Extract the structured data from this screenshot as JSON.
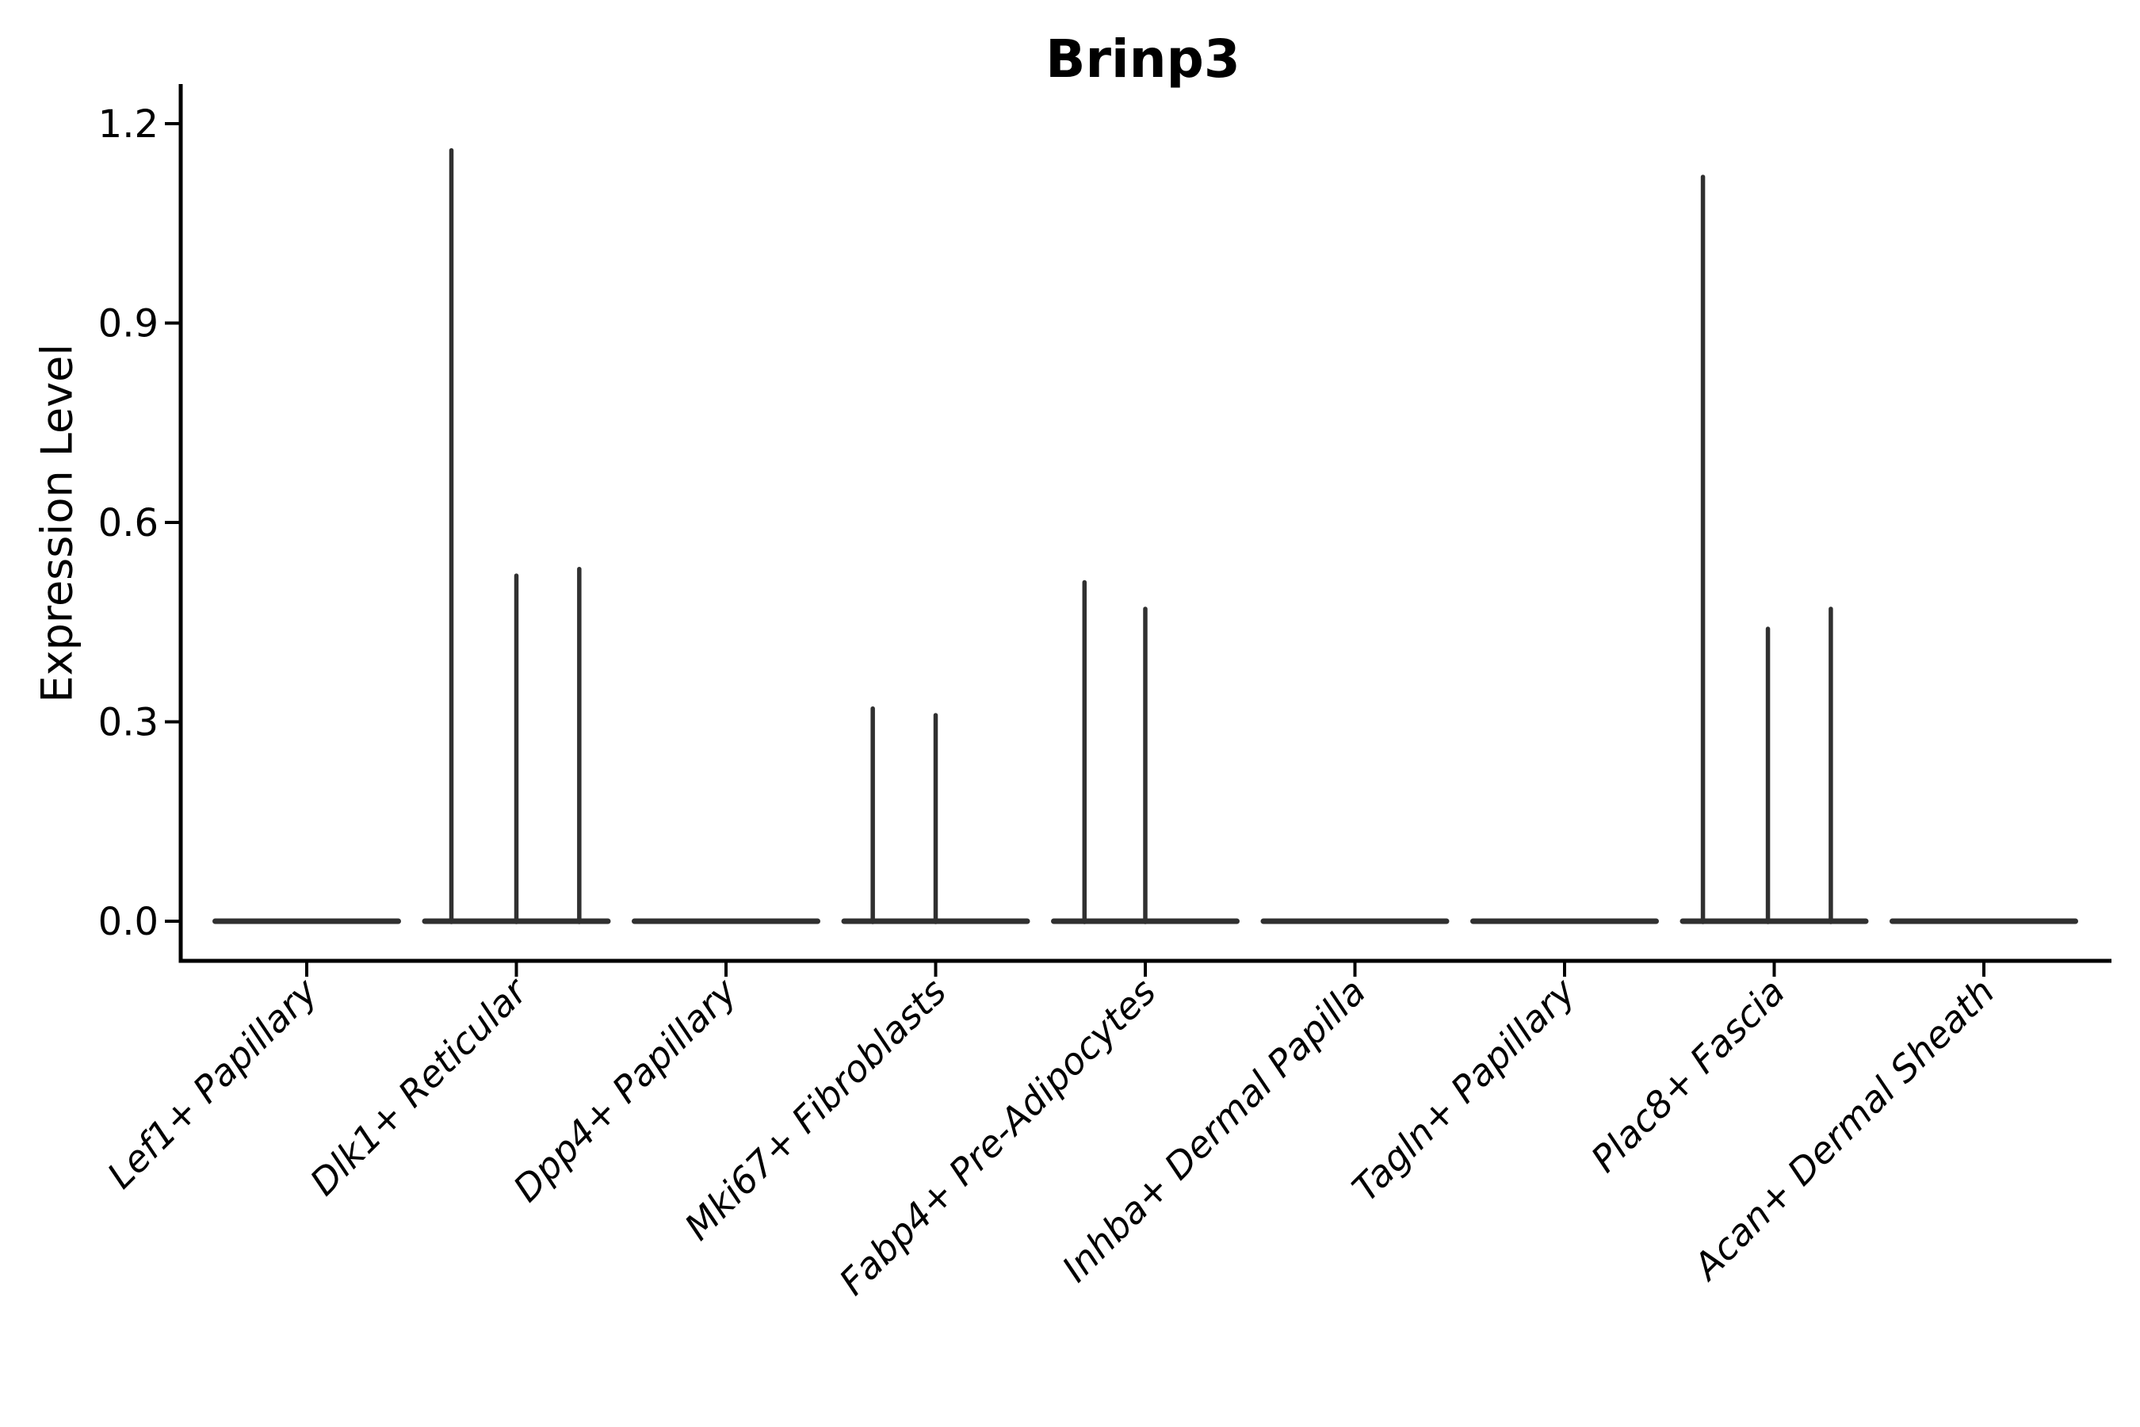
{
  "chart_data": {
    "type": "violin",
    "title": "Brinp3",
    "ylabel": "Expression Level",
    "xlabel": "",
    "ytick_labels": [
      "0.0",
      "0.3",
      "0.6",
      "0.9",
      "1.2"
    ],
    "ytick_values": [
      0.0,
      0.3,
      0.6,
      0.9,
      1.2
    ],
    "ylim": [
      -0.06,
      1.26
    ],
    "grid": false,
    "legend": null,
    "x_label_rotation_deg": 45,
    "categories": [
      "Lef1+ Papillary",
      "Dlk1+ Reticular",
      "Dpp4+ Papillary",
      "Mki67+ Fibroblasts",
      "Fabp4+ Pre-Adipocytes",
      "Inhba+ Dermal Papilla",
      "Tagln+ Papillary",
      "Plac8+ Fascia",
      "Acan+ Dermal Sheath"
    ],
    "series": [
      {
        "category": "Lef1+ Papillary",
        "baseline_value": 0.0,
        "spikes": []
      },
      {
        "category": "Dlk1+ Reticular",
        "baseline_value": 0.0,
        "spikes": [
          {
            "offset": -0.31,
            "value": 1.16
          },
          {
            "offset": 0.0,
            "value": 0.52
          },
          {
            "offset": 0.3,
            "value": 0.53
          }
        ]
      },
      {
        "category": "Dpp4+ Papillary",
        "baseline_value": 0.0,
        "spikes": []
      },
      {
        "category": "Mki67+ Fibroblasts",
        "baseline_value": 0.0,
        "spikes": [
          {
            "offset": -0.3,
            "value": 0.32
          },
          {
            "offset": 0.0,
            "value": 0.31
          }
        ]
      },
      {
        "category": "Fabp4+ Pre-Adipocytes",
        "baseline_value": 0.0,
        "spikes": [
          {
            "offset": -0.29,
            "value": 0.51
          },
          {
            "offset": 0.0,
            "value": 0.47
          }
        ]
      },
      {
        "category": "Inhba+ Dermal Papilla",
        "baseline_value": 0.0,
        "spikes": []
      },
      {
        "category": "Tagln+ Papillary",
        "baseline_value": 0.0,
        "spikes": []
      },
      {
        "category": "Plac8+ Fascia",
        "baseline_value": 0.0,
        "spikes": [
          {
            "offset": -0.34,
            "value": 1.12
          },
          {
            "offset": -0.03,
            "value": 0.44
          },
          {
            "offset": 0.27,
            "value": 0.47
          }
        ]
      },
      {
        "category": "Acan+ Dermal Sheath",
        "baseline_value": 0.0,
        "spikes": []
      }
    ],
    "colors": {
      "axis": "#000000",
      "violin": "#303030",
      "text": "#000000",
      "background": "#ffffff"
    }
  }
}
